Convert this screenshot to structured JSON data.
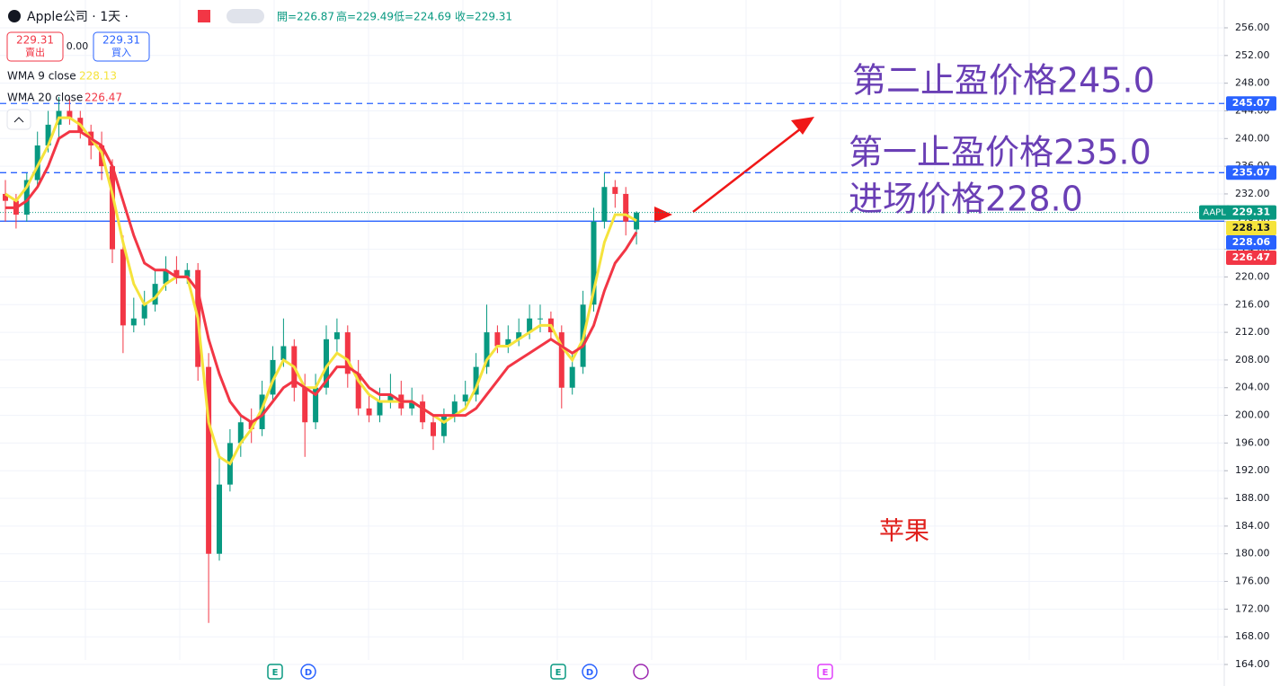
{
  "chart_data": {
    "type": "candlestick",
    "title": "Apple公司 · 1天 ·",
    "ohlc_legend": [
      "開=226.87",
      "高=229.49",
      "低=224.69",
      "收=229.31"
    ],
    "trade": {
      "sell_price": "229.31",
      "sell_label": "賣出",
      "spread": "0.00",
      "buy_price": "229.31",
      "buy_label": "買入"
    },
    "symbol": "AAPL",
    "up_color": "#089981",
    "down_color": "#f23645",
    "open": [
      232,
      231,
      229,
      234,
      239,
      242,
      244,
      243,
      241,
      239,
      236,
      224,
      213,
      214,
      216,
      219,
      221,
      220,
      221,
      207,
      180,
      190,
      196,
      199,
      198,
      203,
      208,
      210,
      204,
      199,
      204,
      211,
      212,
      206,
      201,
      200,
      202,
      203,
      201,
      202,
      199,
      197,
      200,
      202,
      203,
      207,
      212,
      210,
      211,
      212,
      214,
      214,
      212,
      204,
      207,
      216,
      228,
      233,
      232,
      226.87
    ],
    "high": [
      234,
      232,
      235,
      241,
      244,
      246,
      246,
      244,
      242,
      241,
      237,
      226,
      217,
      218,
      221,
      223,
      223,
      222,
      222,
      209,
      194,
      198,
      200,
      201,
      205,
      210,
      214,
      211,
      206,
      206,
      213,
      214,
      213,
      208,
      203,
      204,
      206,
      205,
      204,
      203,
      200,
      201,
      203,
      205,
      209,
      216,
      213,
      213,
      214,
      216,
      216,
      215,
      213,
      209,
      218,
      230,
      235,
      234,
      233,
      229.49
    ],
    "low": [
      228,
      227,
      228,
      233,
      238,
      240,
      242,
      240,
      237,
      234,
      222,
      209,
      212,
      213,
      215,
      218,
      219,
      219,
      205,
      170,
      179,
      189,
      194,
      196,
      197,
      202,
      207,
      202,
      194,
      198,
      203,
      209,
      204,
      200,
      199,
      199,
      201,
      200,
      200,
      198,
      195,
      196,
      199,
      201,
      202,
      206,
      209,
      209,
      210,
      211,
      212,
      211,
      201,
      203,
      206,
      215,
      227,
      230,
      226,
      224.69
    ],
    "close": [
      231,
      229,
      234,
      239,
      242,
      244,
      243,
      241,
      239,
      236,
      224,
      213,
      214,
      216,
      219,
      221,
      220,
      221,
      207,
      180,
      190,
      196,
      199,
      198,
      203,
      208,
      210,
      204,
      199,
      204,
      211,
      212,
      206,
      201,
      200,
      202,
      203,
      201,
      202,
      199,
      197,
      200,
      202,
      203,
      207,
      212,
      210,
      211,
      212,
      214,
      214,
      212,
      204,
      207,
      216,
      228,
      233,
      232,
      228,
      229.31
    ],
    "series": [
      {
        "name": "WMA 9 close",
        "color": "#f5e33c",
        "values": [
          232,
          231,
          233,
          236,
          239,
          243,
          243,
          242,
          240,
          238,
          232,
          225,
          219,
          216,
          217,
          219,
          220,
          220,
          214,
          199,
          194,
          193,
          196,
          198,
          201,
          205,
          208,
          207,
          204,
          204,
          207,
          209,
          208,
          205,
          203,
          202,
          202,
          202,
          202,
          201,
          200,
          199,
          200,
          201,
          204,
          208,
          210,
          210,
          211,
          212,
          213,
          213,
          210,
          208,
          211,
          218,
          225,
          229,
          229,
          228.13
        ]
      },
      {
        "name": "WMA 20 close",
        "color": "#f23645",
        "values": [
          230,
          230,
          231,
          233,
          236,
          240,
          241,
          241,
          240,
          239,
          236,
          231,
          226,
          222,
          221,
          221,
          220,
          220,
          218,
          211,
          206,
          202,
          200,
          199,
          200,
          202,
          204,
          205,
          204,
          203,
          205,
          207,
          207,
          206,
          204,
          203,
          203,
          202,
          202,
          201,
          200,
          200,
          200,
          200,
          201,
          203,
          205,
          207,
          208,
          209,
          210,
          211,
          210,
          209,
          210,
          213,
          218,
          222,
          224,
          226.47
        ]
      }
    ],
    "levels": [
      {
        "value": 245.07,
        "style": "dashed"
      },
      {
        "value": 235.07,
        "style": "dashed"
      },
      {
        "value": 228.06,
        "style": "solid"
      }
    ],
    "last_price": 229.31,
    "ylim": [
      160.89,
      260.02
    ],
    "yticks": [
      {
        "value": 164,
        "label": "164.00"
      },
      {
        "value": 168,
        "label": "168.00"
      },
      {
        "value": 172,
        "label": "172.00"
      },
      {
        "value": 176,
        "label": "176.00"
      },
      {
        "value": 180,
        "label": "180.00"
      },
      {
        "value": 184,
        "label": "184.00"
      },
      {
        "value": 188,
        "label": "188.00"
      },
      {
        "value": 192,
        "label": "192.00"
      },
      {
        "value": 196,
        "label": "196.00"
      },
      {
        "value": 200,
        "label": "200.00"
      },
      {
        "value": 204,
        "label": "204.00"
      },
      {
        "value": 208,
        "label": "208.00"
      },
      {
        "value": 212,
        "label": "212.00"
      },
      {
        "value": 216,
        "label": "216.00"
      },
      {
        "value": 220,
        "label": "220.00"
      },
      {
        "value": 224,
        "label": "224.00"
      },
      {
        "value": 228,
        "label": "228.00"
      },
      {
        "value": 232,
        "label": "232.00"
      },
      {
        "value": 236,
        "label": "236.00"
      },
      {
        "value": 240,
        "label": "240.00"
      },
      {
        "value": 244,
        "label": "244.00"
      },
      {
        "value": 248,
        "label": "248.00"
      },
      {
        "value": 252,
        "label": "252.00"
      },
      {
        "value": 256,
        "label": "256.00"
      }
    ],
    "grid": true,
    "annotations": [
      "第二止盈价格245.0",
      "第一止盈价格235.0",
      "进场价格228.0",
      "苹果"
    ],
    "events": [
      "E",
      "D",
      "E",
      "D",
      "E"
    ]
  }
}
